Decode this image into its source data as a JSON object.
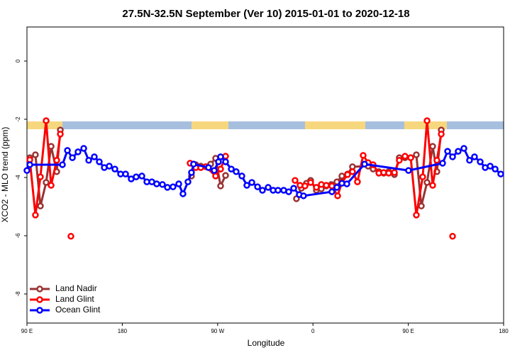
{
  "chart_data": {
    "type": "line",
    "title": "27.5N-32.5N September (Ver 10)   2015-01-01 to 2020-12-18",
    "x_label": "Longitude",
    "y_label": "XCO2 - MLO trend (ppm)",
    "xlim": [
      90,
      540
    ],
    "xticks": [
      {
        "value": 90,
        "label": "90 E"
      },
      180,
      {
        "value": 270,
        "label": "90 W"
      },
      {
        "value": 360,
        "label": "0"
      },
      {
        "value": 450,
        "label": "90 E"
      },
      {
        "value": 540,
        "label": "180"
      }
    ],
    "ylim": [
      -9,
      1.17
    ],
    "yticks": [
      0,
      -2,
      -4,
      -6,
      -8
    ],
    "legend": "bottom-left",
    "series": [
      {
        "name": "Land Nadir",
        "color": "#993333",
        "x": [
          92.7,
          98,
          102.7,
          108.1,
          112.8,
          118.1,
          121.5,
          null,
          245.3,
          249.4,
          254.1,
          258.8,
          263.4,
          268.1,
          272.8,
          277.5,
          null,
          344.4,
          349.1,
          353.8,
          357.8,
          363.2,
          367.9,
          372.6,
          377.3,
          382.6,
          387.3,
          392.7,
          397.3,
          412.1,
          416.8,
          422.2,
          426.8,
          431.5,
          436.9,
          441.5,
          446.9,
          452.3,
          457.6,
          462.3,
          467.7,
          473,
          477,
          481.1
        ],
        "values": [
          -3.32,
          -3.22,
          -4.98,
          -4.17,
          -2.93,
          -3.8,
          -2.37,
          null,
          -3.95,
          -3.56,
          -3.61,
          -3.63,
          -3.54,
          -3.34,
          -4.29,
          -3.93,
          null,
          -4.73,
          -4.37,
          -4.2,
          -4.1,
          -4.44,
          -4.39,
          -4.29,
          -4.24,
          -4.15,
          -3.95,
          -3.88,
          -3.63,
          -3.61,
          -3.71,
          -3.8,
          -3.85,
          -3.8,
          -3.9,
          -3.32,
          -3.32,
          -3.32,
          -3.22,
          -4.98,
          -4.17,
          -2.93,
          -3.8,
          -2.37
        ]
      },
      {
        "name": "Land Glint",
        "color": "#ff0000",
        "x": [
          92.7,
          98,
          102.7,
          108.1,
          112.8,
          118.1,
          121.5,
          null,
          131.5,
          null,
          244,
          249.4,
          254.1,
          258.8,
          268.1,
          272.8,
          277.5,
          null,
          343.1,
          347.8,
          352.5,
          357.8,
          363.2,
          367.9,
          372.6,
          377.9,
          383.3,
          387.3,
          392.7,
          397.3,
          402,
          407.4,
          412.1,
          416.8,
          422.2,
          426.8,
          431.5,
          436.9,
          441.5,
          446.9,
          452.3,
          457.6,
          463.6,
          467.7,
          473,
          477,
          481.1,
          null,
          491.8
        ],
        "values": [
          -3.39,
          -5.29,
          -3.98,
          -2.05,
          -4.27,
          -3.41,
          -2.51,
          null,
          -6.02,
          null,
          -3.51,
          -3.66,
          -3.66,
          -3.63,
          -3.95,
          -3.71,
          -3.27,
          null,
          -4.1,
          -4.27,
          -4.29,
          -4.17,
          -4.34,
          -4.24,
          -4.27,
          -4.29,
          -4.63,
          -4.17,
          -3.9,
          -3.8,
          -4.15,
          -3.24,
          -3.49,
          -3.56,
          -3.85,
          -3.83,
          -3.85,
          -3.83,
          -3.41,
          -3.27,
          -3.32,
          -5.29,
          -3.98,
          -2.05,
          -4.27,
          -3.41,
          -2.51,
          null,
          -6.02
        ]
      },
      {
        "name": "Ocean Glint",
        "color": "#0000ff",
        "x": [
          90,
          92.7,
          123.5,
          128.2,
          132.9,
          138.2,
          143.6,
          148.3,
          153.6,
          158.3,
          163,
          167.7,
          173,
          178.4,
          183.1,
          188.4,
          193.1,
          198.5,
          203.2,
          207.9,
          212.5,
          217.9,
          222.6,
          227.9,
          233.3,
          237.3,
          242,
          245.3,
          247.3,
          261.4,
          266.8,
          270.8,
          272.8,
          277.5,
          282.9,
          287.5,
          292.9,
          297.6,
          302.3,
          307.7,
          312.3,
          317.7,
          322.4,
          327,
          332.4,
          337.1,
          341.8,
          347.1,
          351.1,
          377.9,
          382.6,
          387.3,
          392,
          408.7,
          450.2,
          482.4,
          487.1,
          491.8,
          497.1,
          502.5,
          507.8,
          512.5,
          517.9,
          522.6,
          527.3,
          532,
          537.3
        ],
        "values": [
          -3.76,
          -3.56,
          -3.56,
          -3.07,
          -3.32,
          -3.12,
          -3.0,
          -3.41,
          -3.29,
          -3.46,
          -3.66,
          -3.61,
          -3.71,
          -3.88,
          -3.88,
          -4.05,
          -3.98,
          -3.95,
          -4.15,
          -4.15,
          -4.22,
          -4.24,
          -4.34,
          -4.32,
          -4.22,
          -4.56,
          -4.15,
          -3.83,
          -3.54,
          -3.66,
          -3.76,
          -3.46,
          -3.29,
          -3.46,
          -3.71,
          -3.8,
          -3.95,
          -4.27,
          -4.17,
          -4.32,
          -4.44,
          -4.34,
          -4.44,
          -4.44,
          -4.44,
          -4.49,
          -4.37,
          -4.59,
          -4.63,
          -4.49,
          -4.34,
          -4.2,
          -4.22,
          -3.54,
          -3.76,
          -3.51,
          -3.1,
          -3.29,
          -3.1,
          -3.0,
          -3.41,
          -3.29,
          -3.46,
          -3.66,
          -3.61,
          -3.71,
          -3.88
        ]
      }
    ]
  }
}
